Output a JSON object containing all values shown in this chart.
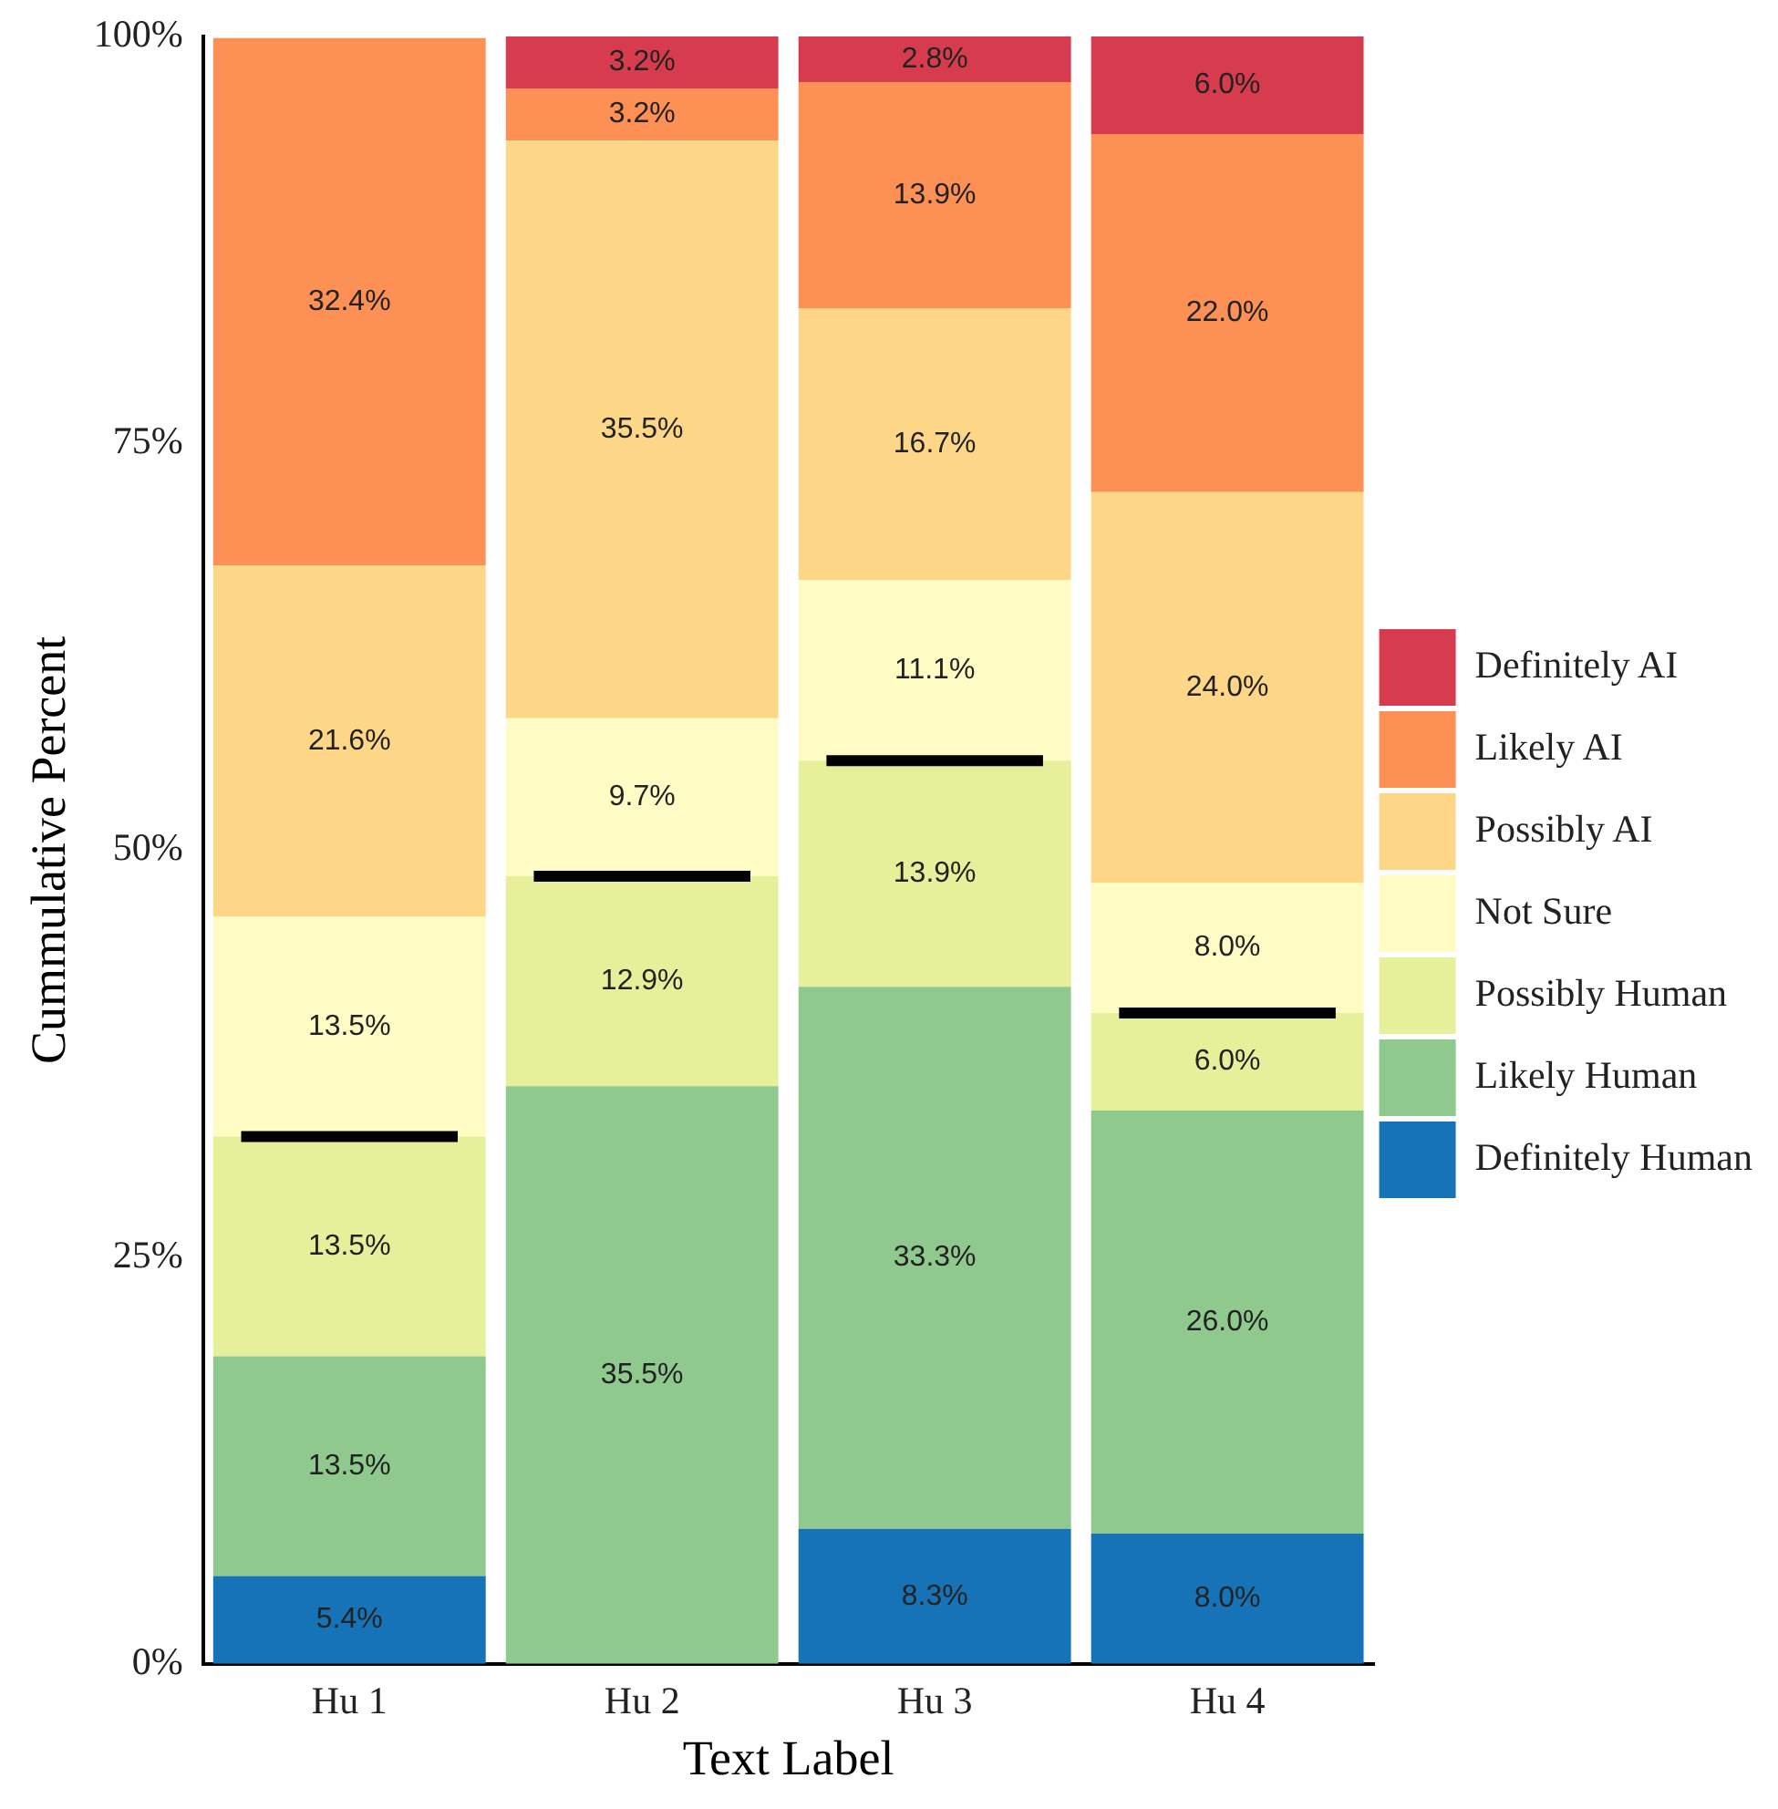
{
  "chart_data": {
    "type": "bar",
    "stacked": true,
    "xlabel": "Text Label",
    "ylabel": "Cummulative Percent",
    "categories": [
      "Hu 1",
      "Hu 2",
      "Hu 3",
      "Hu 4"
    ],
    "ylim": [
      0,
      100
    ],
    "yticks": [
      {
        "value": 0,
        "label": "0%"
      },
      {
        "value": 25,
        "label": "25%"
      },
      {
        "value": 50,
        "label": "50%"
      },
      {
        "value": 75,
        "label": "75%"
      },
      {
        "value": 100,
        "label": "100%"
      }
    ],
    "grid": false,
    "legend": "right",
    "series": [
      {
        "name": "Definitely Human",
        "color": "#1673b8",
        "values": [
          5.4,
          null,
          8.3,
          8.0
        ],
        "value_labels": [
          "5.4%",
          null,
          "8.3%",
          "8.0%"
        ]
      },
      {
        "name": "Likely Human",
        "color": "#8fc98e",
        "values": [
          13.5,
          35.5,
          33.3,
          26.0
        ],
        "value_labels": [
          "13.5%",
          "35.5%",
          "33.3%",
          "26.0%"
        ]
      },
      {
        "name": "Possibly Human",
        "color": "#e6ef9a",
        "values": [
          13.5,
          12.9,
          13.9,
          6.0
        ],
        "value_labels": [
          "13.5%",
          "12.9%",
          "13.9%",
          "6.0%"
        ]
      },
      {
        "name": "Not Sure",
        "color": "#fffbc4",
        "values": [
          13.5,
          9.7,
          11.1,
          8.0
        ],
        "value_labels": [
          "13.5%",
          "9.7%",
          "11.1%",
          "8.0%"
        ]
      },
      {
        "name": "Possibly AI",
        "color": "#fed688",
        "values": [
          21.6,
          35.5,
          16.7,
          24.0
        ],
        "value_labels": [
          "21.6%",
          "35.5%",
          "16.7%",
          "24.0%"
        ]
      },
      {
        "name": "Likely AI",
        "color": "#fc9055",
        "values": [
          32.4,
          3.2,
          13.9,
          22.0
        ],
        "value_labels": [
          "32.4%",
          "3.2%",
          "13.9%",
          "22.0%"
        ]
      },
      {
        "name": "Definitely AI",
        "color": "#d63c4d",
        "values": [
          null,
          3.2,
          2.8,
          6.0
        ],
        "value_labels": [
          null,
          "3.2%",
          "2.8%",
          "6.0%"
        ]
      }
    ],
    "ref_lines": [
      {
        "axis": "y",
        "value": 32.4,
        "color": "#000000"
      },
      {
        "axis": "y",
        "value": 48.4,
        "color": "#000000"
      },
      {
        "axis": "y",
        "value": 55.5,
        "color": "#000000"
      },
      {
        "axis": "y",
        "value": 40.0,
        "color": "#000000"
      }
    ]
  }
}
